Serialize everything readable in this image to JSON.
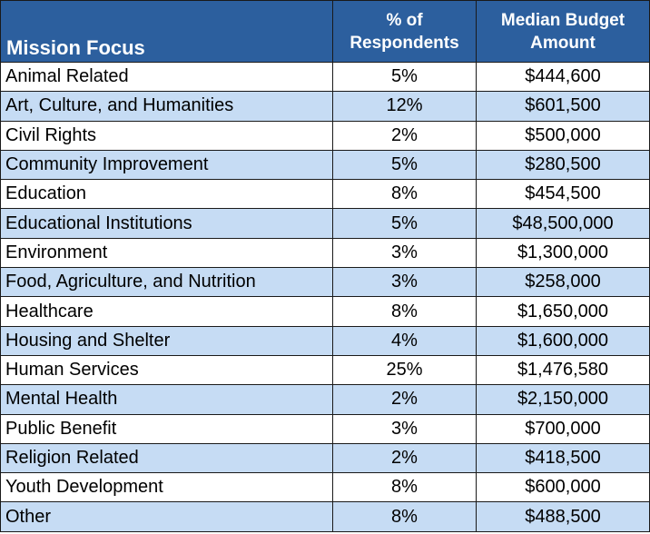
{
  "header": {
    "mission_focus": "Mission Focus",
    "pct_line1": "% of",
    "pct_line2": "Respondents",
    "budget_line1": "Median Budget",
    "budget_line2": "Amount"
  },
  "rows": [
    {
      "focus": "Animal Related",
      "pct": "5%",
      "budget": "$444,600"
    },
    {
      "focus": "Art, Culture, and Humanities",
      "pct": "12%",
      "budget": "$601,500"
    },
    {
      "focus": "Civil Rights",
      "pct": "2%",
      "budget": "$500,000"
    },
    {
      "focus": "Community Improvement",
      "pct": "5%",
      "budget": "$280,500"
    },
    {
      "focus": "Education",
      "pct": "8%",
      "budget": "$454,500"
    },
    {
      "focus": "Educational Institutions",
      "pct": "5%",
      "budget": "$48,500,000"
    },
    {
      "focus": "Environment",
      "pct": "3%",
      "budget": "$1,300,000"
    },
    {
      "focus": "Food, Agriculture, and Nutrition",
      "pct": "3%",
      "budget": "$258,000"
    },
    {
      "focus": "Healthcare",
      "pct": "8%",
      "budget": "$1,650,000"
    },
    {
      "focus": "Housing and Shelter",
      "pct": "4%",
      "budget": "$1,600,000"
    },
    {
      "focus": "Human Services",
      "pct": "25%",
      "budget": "$1,476,580"
    },
    {
      "focus": "Mental Health",
      "pct": "2%",
      "budget": "$2,150,000"
    },
    {
      "focus": "Public Benefit",
      "pct": "3%",
      "budget": "$700,000"
    },
    {
      "focus": "Religion Related",
      "pct": "2%",
      "budget": "$418,500"
    },
    {
      "focus": "Youth Development",
      "pct": "8%",
      "budget": "$600,000"
    },
    {
      "focus": "Other",
      "pct": "8%",
      "budget": "$488,500"
    }
  ],
  "colors": {
    "header_bg": "#2c5f9e",
    "stripe_bg": "#c6dcf4",
    "border": "#1a1a1a"
  }
}
